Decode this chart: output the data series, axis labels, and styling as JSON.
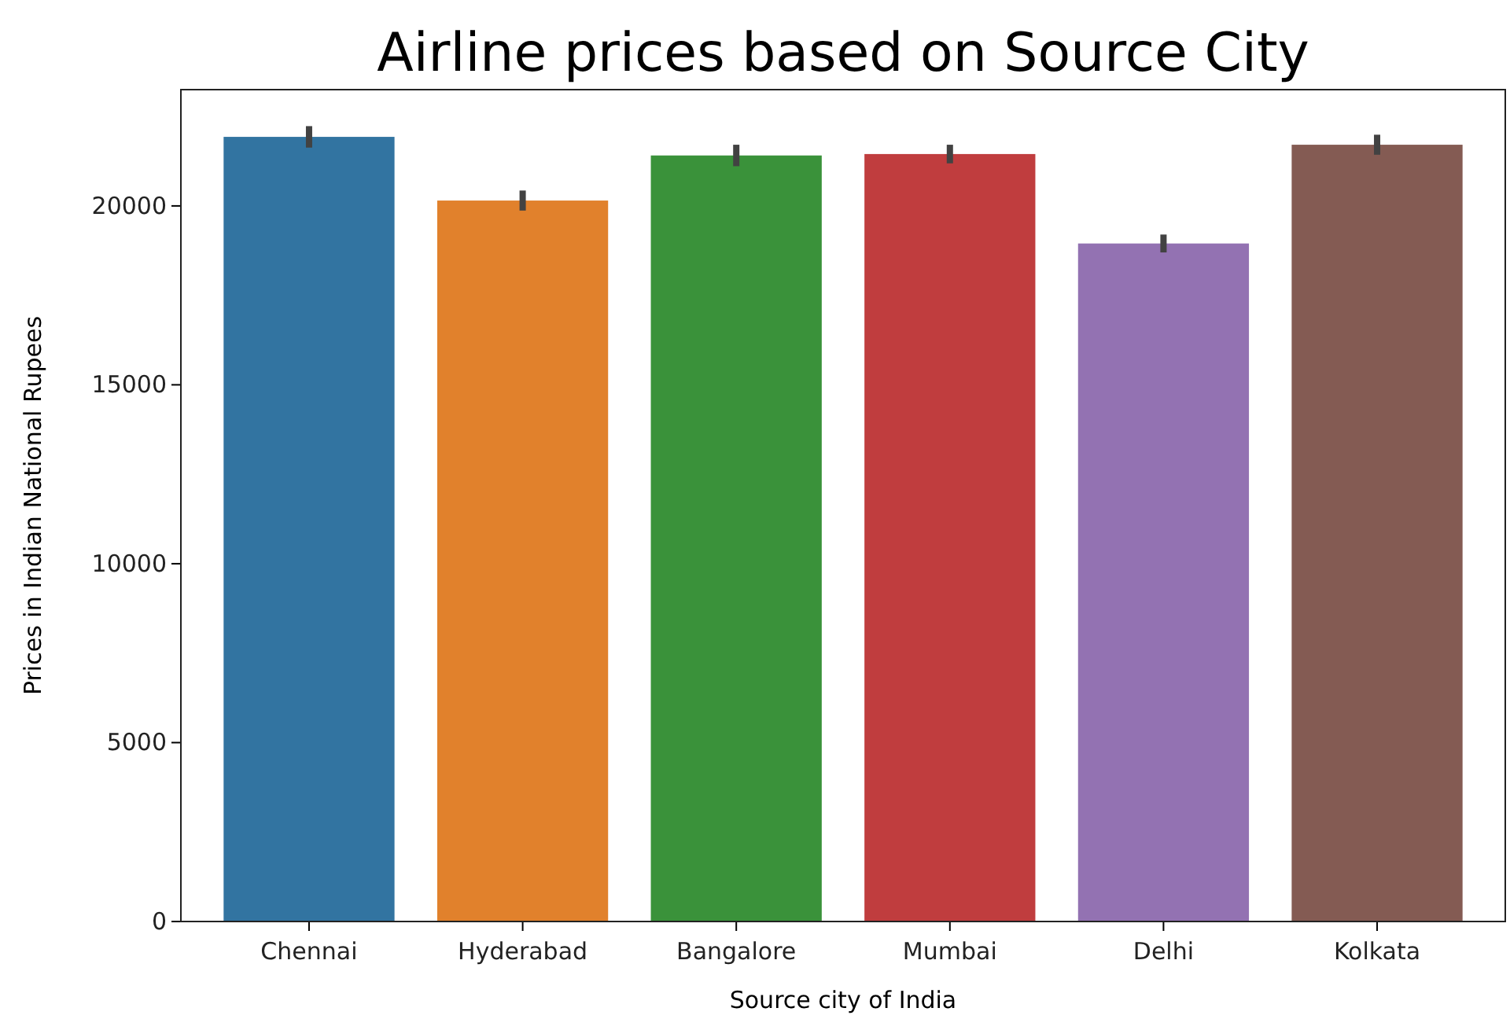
{
  "chart_data": {
    "type": "bar",
    "title": "Airline prices based on Source City",
    "xlabel": "Source city of India",
    "ylabel": "Prices in Indian National Rupees",
    "categories": [
      "Chennai",
      "Hyderabad",
      "Bangalore",
      "Mumbai",
      "Delhi",
      "Kolkata"
    ],
    "values": [
      21930,
      20150,
      21410,
      21450,
      18950,
      21710
    ],
    "colors": [
      "#3274a1",
      "#e1812c",
      "#3a923a",
      "#c03d3e",
      "#9372b2",
      "#845b53"
    ],
    "errors": [
      300,
      280,
      300,
      260,
      250,
      280
    ],
    "ylim": [
      0,
      23250
    ],
    "yticks": [
      0,
      5000,
      10000,
      15000,
      20000
    ],
    "grid": false
  }
}
